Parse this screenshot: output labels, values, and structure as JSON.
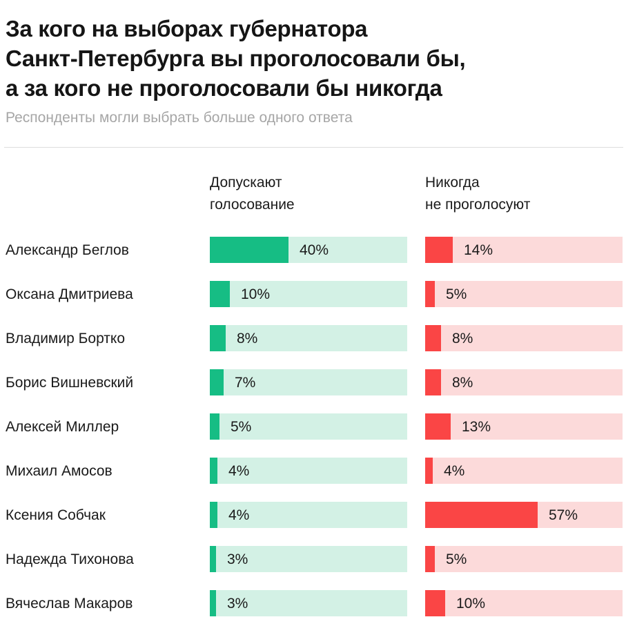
{
  "header": {
    "title_lines": [
      "За кого на выборах губернатора",
      "Санкт-Петербурга вы проголосовали бы,",
      "а за кого не проголосовали бы никогда"
    ],
    "subtitle": "Респонденты могли выбрать больше одного ответа"
  },
  "columns": {
    "allow": [
      "Допускают",
      "голосование"
    ],
    "never": [
      "Никогда",
      "не проголосуют"
    ]
  },
  "colors": {
    "allow_fill": "#16bd84",
    "allow_track": "#d3f1e5",
    "never_fill": "#fa4545",
    "never_track": "#fcdada"
  },
  "chart_data": {
    "type": "bar",
    "orientation": "horizontal",
    "title": "За кого на выборах губернатора Санкт-Петербурга вы проголосовали бы, а за кого не проголосовали бы никогда",
    "subtitle": "Респонденты могли выбрать больше одного ответа",
    "categories": [
      "Александр Беглов",
      "Оксана Дмитриева",
      "Владимир Бортко",
      "Борис Вишневский",
      "Алексей Миллер",
      "Михаил Амосов",
      "Ксения Собчак",
      "Надежда Тихонова",
      "Вячеслав Макаров"
    ],
    "series": [
      {
        "name": "Допускают голосование",
        "values": [
          40,
          10,
          8,
          7,
          5,
          4,
          4,
          3,
          3
        ],
        "labels": [
          "40%",
          "10%",
          "8%",
          "7%",
          "5%",
          "4%",
          "4%",
          "3%",
          "3%"
        ]
      },
      {
        "name": "Никогда не проголосуют",
        "values": [
          14,
          5,
          8,
          8,
          13,
          4,
          57,
          5,
          10
        ],
        "labels": [
          "14%",
          "5%",
          "8%",
          "8%",
          "13%",
          "4%",
          "57%",
          "5%",
          "10%"
        ]
      }
    ],
    "xlim": [
      0,
      100
    ],
    "unit": "%",
    "grid": false,
    "legend": "column headers above bars"
  }
}
